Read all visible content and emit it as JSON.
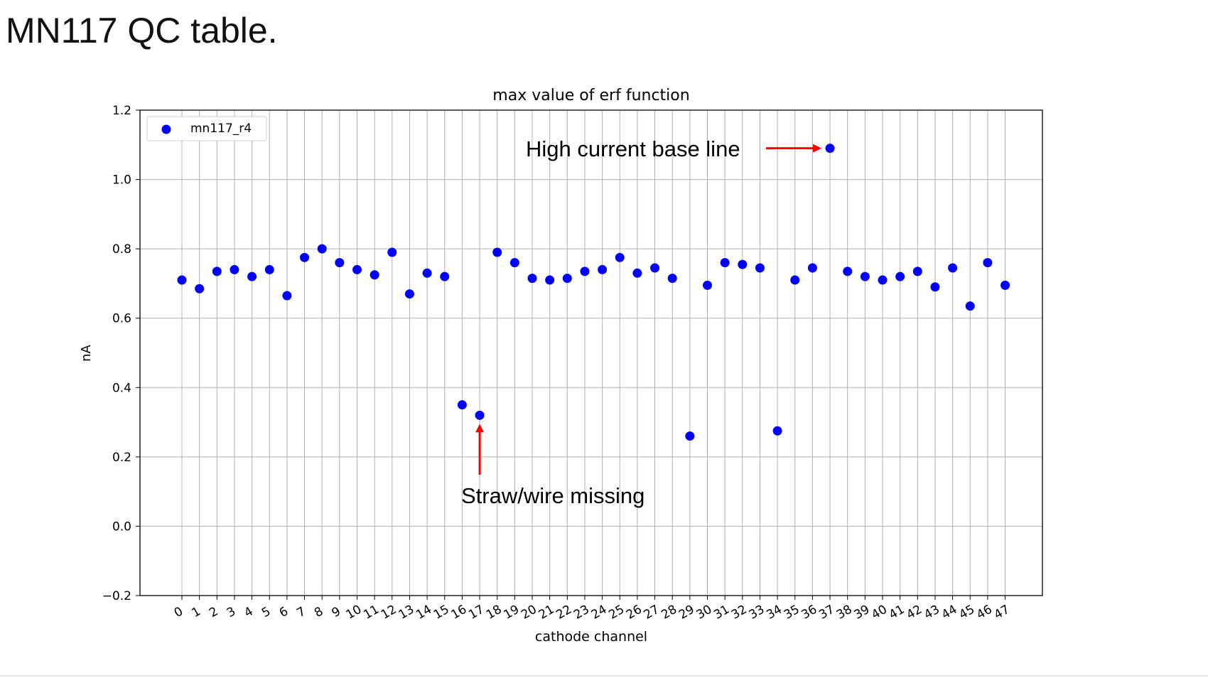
{
  "slide": {
    "title": "MN117 QC table."
  },
  "colors": {
    "marker": "#0000ff",
    "arrow": "#ff0000",
    "grid": "#b0b0b0"
  },
  "chart_data": {
    "type": "scatter",
    "title": "max value of erf function",
    "xlabel": "cathode channel",
    "ylabel": "nA",
    "ylim": [
      -0.2,
      1.2
    ],
    "yticks": [
      "−0.2",
      "0.0",
      "0.2",
      "0.4",
      "0.6",
      "0.8",
      "1.0",
      "1.2"
    ],
    "grid": true,
    "legend_position": "top-left",
    "series": [
      {
        "name": "mn117_r4",
        "x": [
          0,
          1,
          2,
          3,
          4,
          5,
          6,
          7,
          8,
          9,
          10,
          11,
          12,
          13,
          14,
          15,
          16,
          17,
          18,
          19,
          20,
          21,
          22,
          23,
          24,
          25,
          26,
          27,
          28,
          29,
          30,
          31,
          32,
          33,
          34,
          35,
          36,
          37,
          38,
          39,
          40,
          41,
          42,
          43,
          44,
          45,
          46,
          47
        ],
        "y": [
          0.71,
          0.685,
          0.735,
          0.74,
          0.72,
          0.74,
          0.665,
          0.775,
          0.8,
          0.76,
          0.74,
          0.725,
          0.79,
          0.67,
          0.73,
          0.72,
          0.35,
          0.32,
          0.79,
          0.76,
          0.715,
          0.71,
          0.715,
          0.735,
          0.74,
          0.775,
          0.73,
          0.745,
          0.715,
          0.26,
          0.695,
          0.76,
          0.755,
          0.745,
          0.275,
          0.71,
          0.745,
          1.09,
          0.735,
          0.72,
          0.71,
          0.72,
          0.735,
          0.69,
          0.745,
          0.635,
          0.76,
          0.695
        ]
      }
    ],
    "annotations": [
      {
        "text": "High current base line",
        "target_channel": 37,
        "target_value": 1.09,
        "arrow": "right"
      },
      {
        "text": "Straw/wire missing",
        "target_channel": 17,
        "target_value": 0.32,
        "arrow": "up"
      }
    ]
  }
}
